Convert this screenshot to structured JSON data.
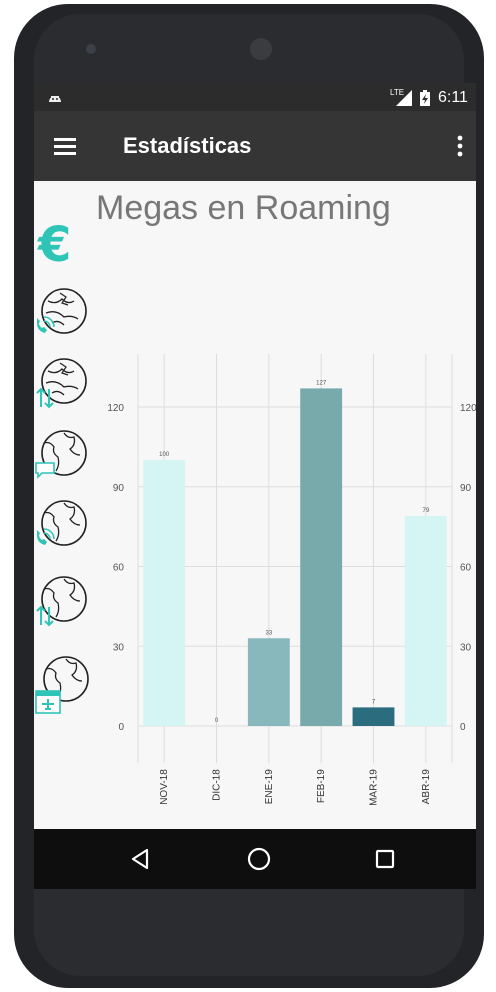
{
  "status_bar": {
    "network": "LTE",
    "time": "6:11"
  },
  "app_bar": {
    "title": "Estadísticas"
  },
  "side_icons": [
    "euro-icon",
    "globe-roaming-call-icon",
    "globe-roaming-data-icon",
    "globe-sms-icon",
    "globe-call-icon",
    "globe-data-icon",
    "globe-travel-icon"
  ],
  "colors": {
    "accent": "#2ec4b6",
    "bar_light": "#d4f5f4",
    "bar_mid": "#88b7bc",
    "bar_teal": "#78aaac",
    "bar_dark": "#2c6c7f"
  },
  "chart_data": {
    "type": "bar",
    "title": "Megas en Roaming",
    "categories": [
      "NOV-18",
      "DIC-18",
      "ENE-19",
      "FEB-19",
      "MAR-19",
      "ABR-19"
    ],
    "values": [
      100,
      0,
      33,
      127,
      7,
      79
    ],
    "data_labels": [
      "100",
      "0",
      "33",
      "127",
      "7",
      "79"
    ],
    "bar_colors": [
      "#d4f5f4",
      "#d4f5f4",
      "#88b7bc",
      "#78aaac",
      "#2c6c7f",
      "#d4f5f4"
    ],
    "yticks": [
      0,
      30,
      60,
      90,
      120
    ],
    "ylim": [
      -14,
      140
    ],
    "grid": true,
    "xlabel": "",
    "ylabel": ""
  }
}
